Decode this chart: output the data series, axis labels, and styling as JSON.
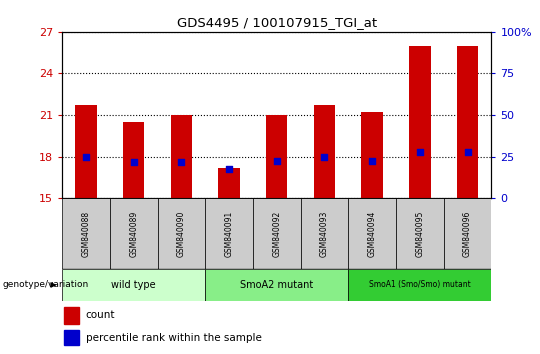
{
  "title": "GDS4495 / 100107915_TGI_at",
  "samples": [
    "GSM840088",
    "GSM840089",
    "GSM840090",
    "GSM840091",
    "GSM840092",
    "GSM840093",
    "GSM840094",
    "GSM840095",
    "GSM840096"
  ],
  "counts": [
    21.7,
    20.5,
    21.0,
    17.2,
    21.0,
    21.7,
    21.2,
    26.0,
    26.0
  ],
  "percentile_ranks": [
    25.0,
    22.0,
    22.0,
    17.5,
    22.5,
    25.0,
    22.5,
    27.5,
    27.5
  ],
  "ylim_left": [
    15,
    27
  ],
  "ylim_right": [
    0,
    100
  ],
  "yticks_left": [
    15,
    18,
    21,
    24,
    27
  ],
  "yticks_right": [
    0,
    25,
    50,
    75,
    100
  ],
  "bar_color": "#cc0000",
  "dot_color": "#0000cc",
  "bar_base": 15,
  "groups": [
    {
      "label": "wild type",
      "indices": [
        0,
        1,
        2
      ],
      "color": "#ccffcc"
    },
    {
      "label": "SmoA2 mutant",
      "indices": [
        3,
        4,
        5
      ],
      "color": "#88ee88"
    },
    {
      "label": "SmoA1 (Smo/Smo) mutant",
      "indices": [
        6,
        7,
        8
      ],
      "color": "#33cc33"
    }
  ],
  "legend_count_label": "count",
  "legend_percentile_label": "percentile rank within the sample",
  "genotype_label": "genotype/variation",
  "grid_color": "#000000",
  "tick_color_left": "#cc0000",
  "tick_color_right": "#0000cc",
  "background_color": "#ffffff",
  "plot_bg_color": "#ffffff",
  "sample_box_color": "#cccccc",
  "bar_width": 0.45
}
